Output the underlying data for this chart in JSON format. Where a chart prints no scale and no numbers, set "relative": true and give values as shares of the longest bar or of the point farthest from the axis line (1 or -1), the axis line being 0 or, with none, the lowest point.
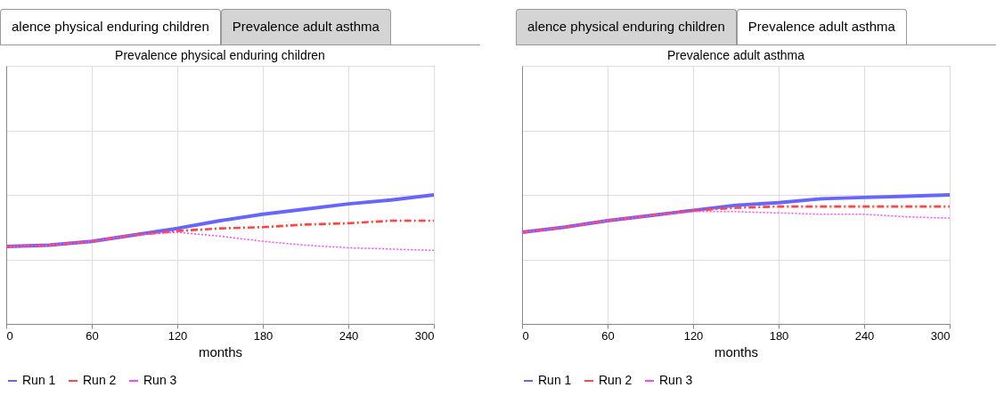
{
  "chart_data": [
    {
      "type": "line",
      "title": "Prevalence physical enduring children",
      "xlabel": "months",
      "relative": true,
      "annotations": [
        "alence physical enduring children",
        "Prevalence adult asthma"
      ],
      "x": [
        0,
        30,
        60,
        90,
        120,
        150,
        180,
        210,
        240,
        270,
        300
      ],
      "xlim": [
        0,
        300
      ],
      "xticks": [
        0,
        60,
        120,
        180,
        240,
        300
      ],
      "grid": true,
      "legend": "bottom",
      "marker": "none",
      "series": [
        {
          "name": "Run 1",
          "color": "#6666ff",
          "line_style": "solid",
          "values": [
            0.6,
            0.61,
            0.64,
            0.69,
            0.74,
            0.8,
            0.85,
            0.89,
            0.93,
            0.96,
            1
          ]
        },
        {
          "name": "Run 2",
          "color": "#ff4444",
          "line_style": "dashed",
          "values": [
            0.6,
            0.61,
            0.64,
            0.69,
            0.72,
            0.74,
            0.75,
            0.77,
            0.78,
            0.8,
            0.8
          ]
        },
        {
          "name": "Run 3",
          "color": "#ff44ff",
          "line_style": "dotted",
          "values": [
            0.6,
            0.61,
            0.64,
            0.69,
            0.71,
            0.68,
            0.64,
            0.61,
            0.59,
            0.58,
            0.57
          ]
        }
      ]
    },
    {
      "type": "line",
      "title": "Prevalence adult asthma",
      "xlabel": "months",
      "relative": true,
      "annotations": [
        "alence physical enduring children",
        "Prevalence adult asthma"
      ],
      "x": [
        0,
        30,
        60,
        90,
        120,
        150,
        180,
        210,
        240,
        270,
        300
      ],
      "xlim": [
        0,
        300
      ],
      "xticks": [
        0,
        60,
        120,
        180,
        240,
        300
      ],
      "grid": true,
      "legend": "bottom",
      "marker": "none",
      "series": [
        {
          "name": "Run 1",
          "color": "#6666ff",
          "line_style": "solid",
          "values": [
            0.71,
            0.75,
            0.8,
            0.84,
            0.88,
            0.92,
            0.94,
            0.97,
            0.98,
            0.99,
            1
          ]
        },
        {
          "name": "Run 2",
          "color": "#ff4444",
          "line_style": "dashed",
          "values": [
            0.71,
            0.75,
            0.8,
            0.84,
            0.88,
            0.9,
            0.91,
            0.91,
            0.91,
            0.91,
            0.91
          ]
        },
        {
          "name": "Run 3",
          "color": "#ff44ff",
          "line_style": "dotted",
          "values": [
            0.71,
            0.75,
            0.8,
            0.84,
            0.87,
            0.87,
            0.86,
            0.85,
            0.85,
            0.83,
            0.82
          ]
        }
      ]
    }
  ]
}
